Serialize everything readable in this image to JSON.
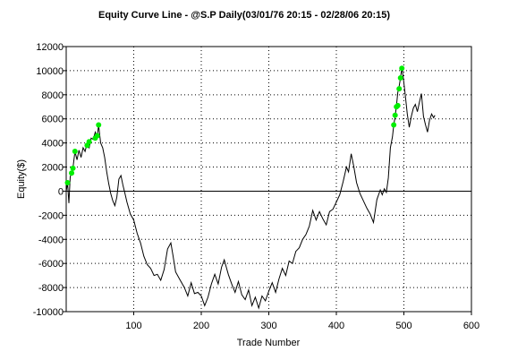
{
  "chart_data": {
    "type": "line",
    "title": "Equity Curve Line - @S.P Daily(03/01/76 20:15 - 02/28/06 20:15)",
    "xlabel": "Trade Number",
    "ylabel": "Equity($)",
    "xlim": [
      0,
      600
    ],
    "ylim": [
      -10000,
      12000
    ],
    "x_ticks": [
      100,
      200,
      300,
      400,
      500,
      600
    ],
    "y_ticks": [
      -10000,
      -8000,
      -6000,
      -4000,
      -2000,
      0,
      2000,
      4000,
      6000,
      8000,
      10000,
      12000
    ],
    "grid": true,
    "series": [
      {
        "color": "#000000",
        "points": [
          [
            0,
            0
          ],
          [
            2,
            700
          ],
          [
            4,
            -1000
          ],
          [
            6,
            1200
          ],
          [
            8,
            1500
          ],
          [
            10,
            1900
          ],
          [
            13,
            3300
          ],
          [
            16,
            2600
          ],
          [
            19,
            3400
          ],
          [
            22,
            2800
          ],
          [
            25,
            3600
          ],
          [
            28,
            3300
          ],
          [
            31,
            4000
          ],
          [
            34,
            3600
          ],
          [
            37,
            4400
          ],
          [
            40,
            4300
          ],
          [
            43,
            4900
          ],
          [
            46,
            4500
          ],
          [
            48,
            5500
          ],
          [
            51,
            4000
          ],
          [
            54,
            3600
          ],
          [
            57,
            2800
          ],
          [
            60,
            1600
          ],
          [
            63,
            600
          ],
          [
            66,
            -200
          ],
          [
            69,
            -800
          ],
          [
            72,
            -1200
          ],
          [
            75,
            -500
          ],
          [
            78,
            1000
          ],
          [
            81,
            1300
          ],
          [
            84,
            500
          ],
          [
            87,
            -200
          ],
          [
            90,
            -900
          ],
          [
            95,
            -1900
          ],
          [
            100,
            -2400
          ],
          [
            105,
            -3500
          ],
          [
            110,
            -4300
          ],
          [
            115,
            -5400
          ],
          [
            120,
            -6100
          ],
          [
            125,
            -6400
          ],
          [
            130,
            -7000
          ],
          [
            135,
            -6900
          ],
          [
            140,
            -7400
          ],
          [
            145,
            -6500
          ],
          [
            150,
            -4800
          ],
          [
            155,
            -4300
          ],
          [
            158,
            -5300
          ],
          [
            162,
            -6700
          ],
          [
            168,
            -7300
          ],
          [
            175,
            -8000
          ],
          [
            180,
            -8700
          ],
          [
            185,
            -7600
          ],
          [
            190,
            -8500
          ],
          [
            195,
            -8400
          ],
          [
            200,
            -8700
          ],
          [
            205,
            -9500
          ],
          [
            210,
            -8800
          ],
          [
            215,
            -7700
          ],
          [
            220,
            -6900
          ],
          [
            225,
            -7700
          ],
          [
            230,
            -6300
          ],
          [
            234,
            -5700
          ],
          [
            240,
            -6900
          ],
          [
            245,
            -7700
          ],
          [
            250,
            -8400
          ],
          [
            255,
            -7500
          ],
          [
            260,
            -8600
          ],
          [
            265,
            -9000
          ],
          [
            270,
            -8200
          ],
          [
            275,
            -9500
          ],
          [
            280,
            -8800
          ],
          [
            285,
            -9700
          ],
          [
            290,
            -8700
          ],
          [
            295,
            -9100
          ],
          [
            300,
            -8300
          ],
          [
            305,
            -7600
          ],
          [
            310,
            -8400
          ],
          [
            315,
            -7300
          ],
          [
            320,
            -6400
          ],
          [
            325,
            -7000
          ],
          [
            330,
            -5800
          ],
          [
            335,
            -6000
          ],
          [
            340,
            -5000
          ],
          [
            345,
            -4700
          ],
          [
            350,
            -4000
          ],
          [
            355,
            -3600
          ],
          [
            360,
            -2900
          ],
          [
            365,
            -1600
          ],
          [
            370,
            -2400
          ],
          [
            375,
            -1700
          ],
          [
            380,
            -2300
          ],
          [
            385,
            -2800
          ],
          [
            390,
            -1700
          ],
          [
            395,
            -1500
          ],
          [
            400,
            -900
          ],
          [
            405,
            -300
          ],
          [
            410,
            800
          ],
          [
            415,
            2000
          ],
          [
            418,
            1600
          ],
          [
            422,
            3100
          ],
          [
            426,
            2000
          ],
          [
            430,
            700
          ],
          [
            435,
            -200
          ],
          [
            440,
            -800
          ],
          [
            445,
            -1400
          ],
          [
            450,
            -1900
          ],
          [
            455,
            -2600
          ],
          [
            460,
            -700
          ],
          [
            465,
            100
          ],
          [
            468,
            -300
          ],
          [
            471,
            200
          ],
          [
            474,
            -100
          ],
          [
            477,
            1100
          ],
          [
            480,
            3600
          ],
          [
            483,
            4500
          ],
          [
            485,
            5500
          ],
          [
            487,
            6200
          ],
          [
            489,
            7100
          ],
          [
            491,
            8200
          ],
          [
            493,
            8700
          ],
          [
            495,
            9400
          ],
          [
            497,
            10200
          ],
          [
            499,
            9500
          ],
          [
            502,
            8000
          ],
          [
            505,
            6400
          ],
          [
            508,
            5300
          ],
          [
            511,
            6200
          ],
          [
            514,
            6900
          ],
          [
            517,
            7200
          ],
          [
            520,
            6600
          ],
          [
            523,
            7400
          ],
          [
            526,
            8100
          ],
          [
            529,
            6200
          ],
          [
            532,
            5500
          ],
          [
            535,
            4900
          ],
          [
            538,
            5900
          ],
          [
            541,
            6400
          ],
          [
            544,
            6100
          ],
          [
            546,
            6300
          ]
        ]
      }
    ],
    "highlights": {
      "color": "#00ee00",
      "points": [
        [
          2,
          700
        ],
        [
          8,
          1500
        ],
        [
          10,
          1900
        ],
        [
          13,
          3300
        ],
        [
          31,
          3800
        ],
        [
          34,
          4100
        ],
        [
          43,
          4400
        ],
        [
          46,
          4600
        ],
        [
          48,
          5500
        ],
        [
          485,
          5500
        ],
        [
          487,
          6300
        ],
        [
          489,
          7000
        ],
        [
          491,
          7100
        ],
        [
          493,
          8500
        ],
        [
          495,
          9400
        ],
        [
          497,
          10200
        ]
      ]
    }
  }
}
